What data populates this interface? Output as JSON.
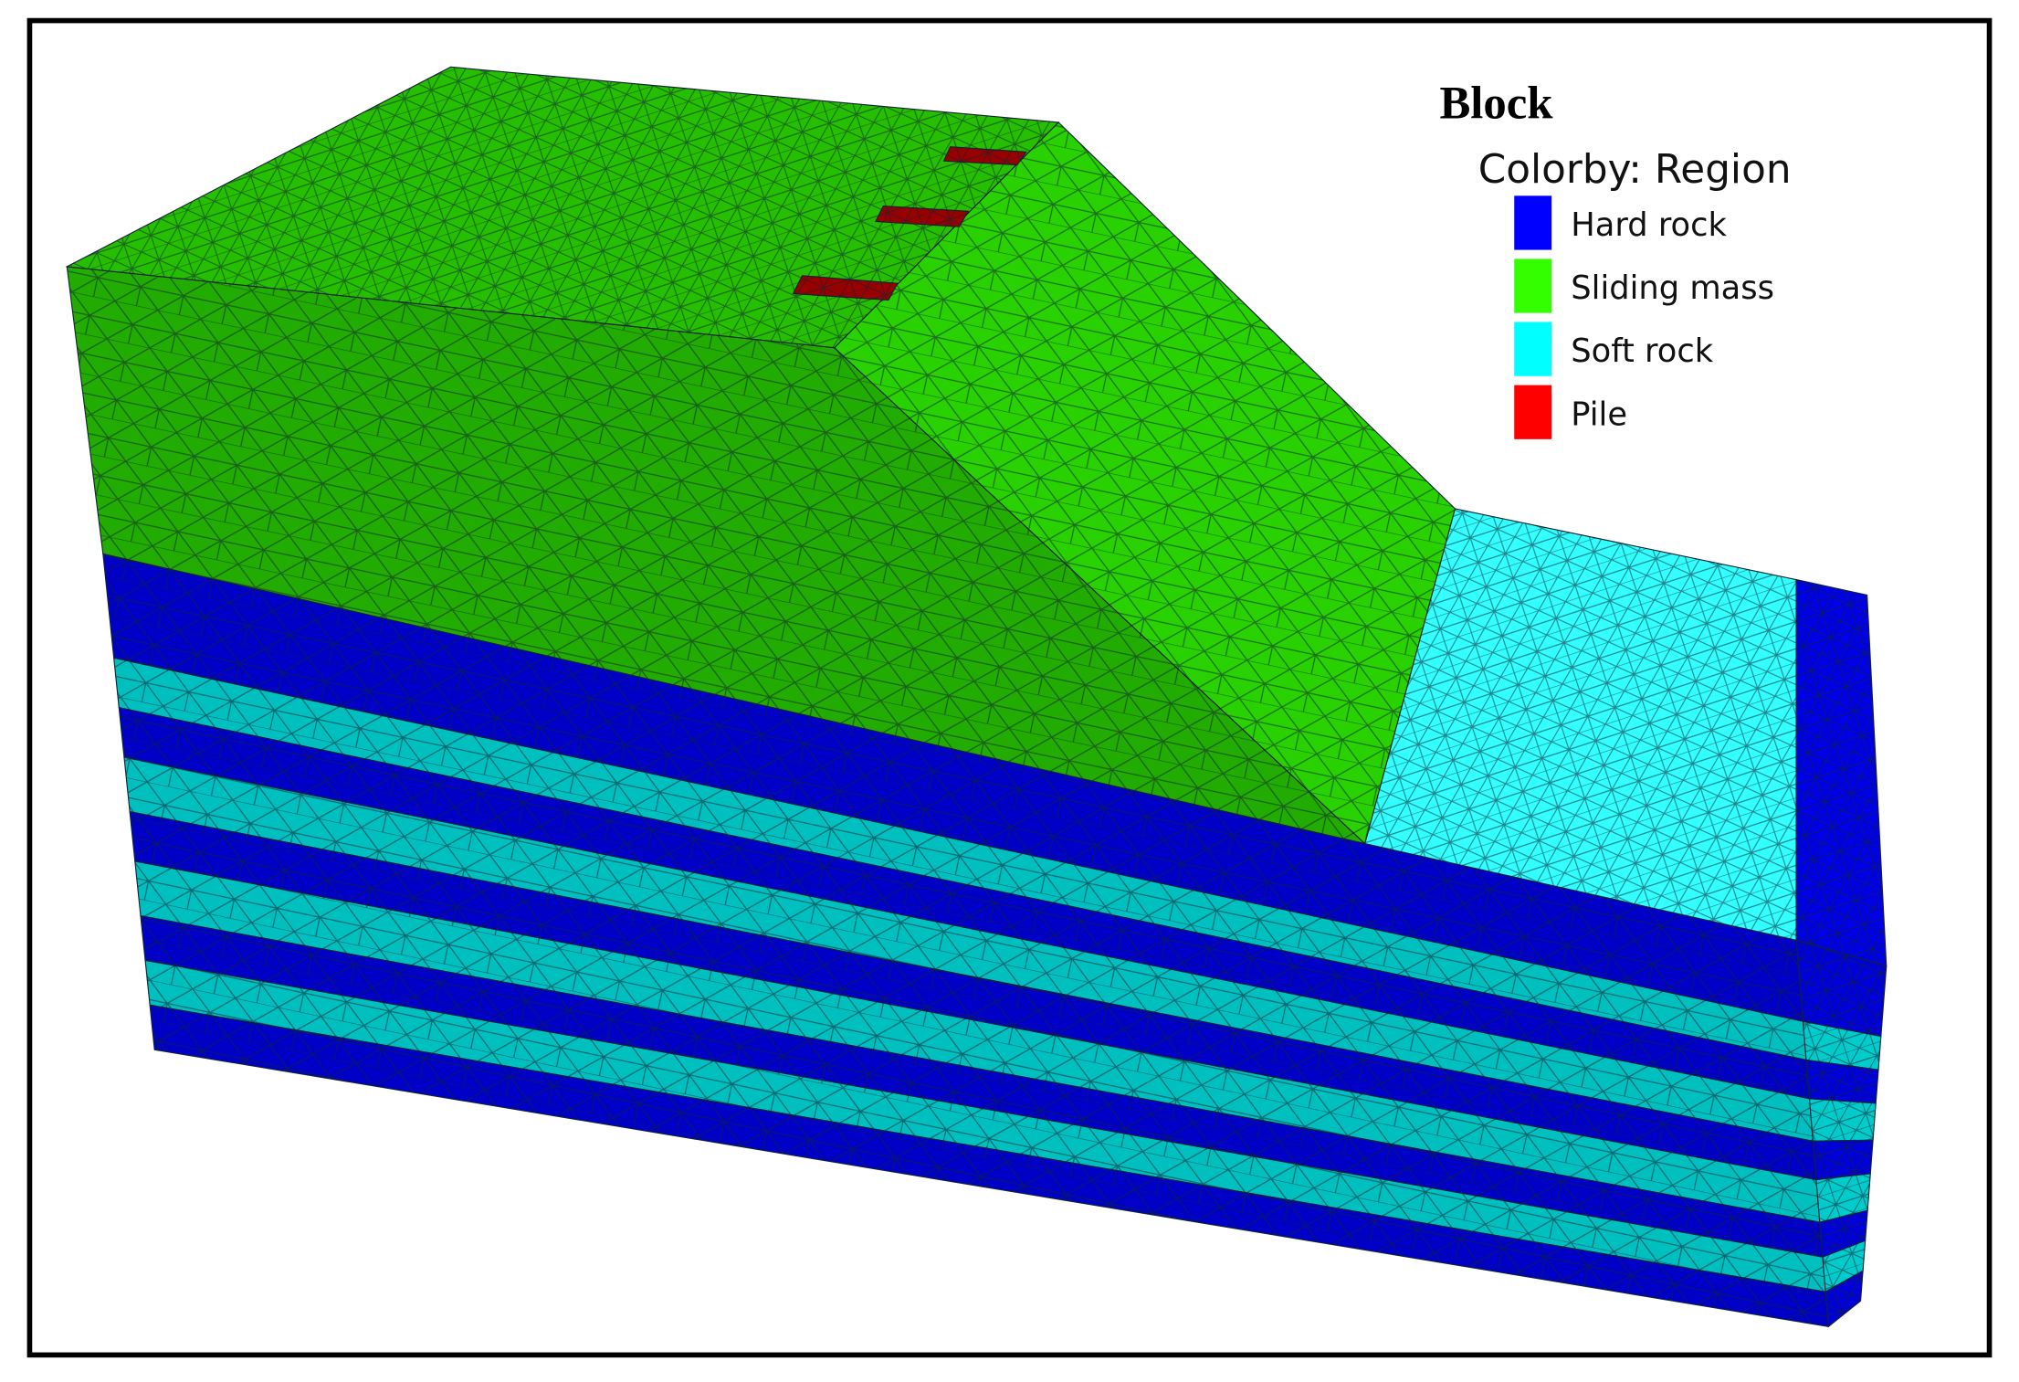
{
  "legend": {
    "title": "Block",
    "subtitle": "Colorby: Region",
    "items": [
      {
        "label": "Hard rock",
        "color": "#0000ff"
      },
      {
        "label": "Sliding mass",
        "color": "#33ff00"
      },
      {
        "label": "Soft rock",
        "color": "#00ffff"
      },
      {
        "label": "Pile",
        "color": "#ff0000"
      }
    ]
  }
}
